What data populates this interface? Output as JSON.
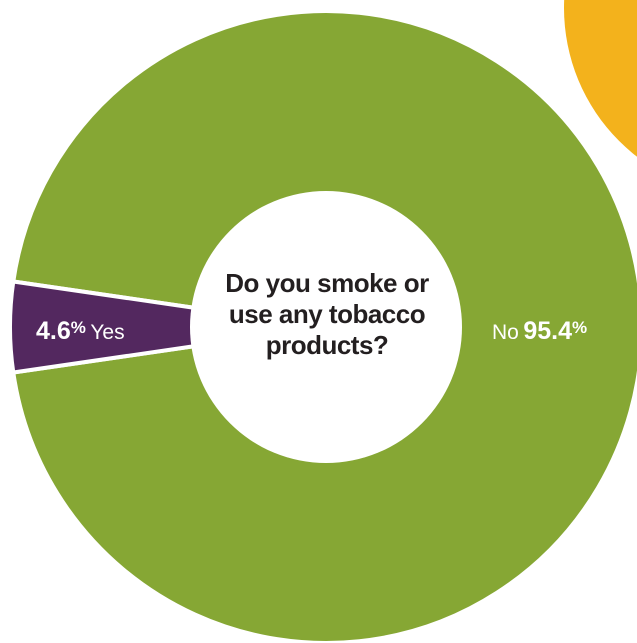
{
  "chart_data": {
    "type": "pie",
    "title": "Do you smoke or use any tobacco products?",
    "title_lines": [
      "Do you smoke or",
      "use any tobacco",
      "products?"
    ],
    "slices": [
      {
        "label": "Yes",
        "value": 4.6,
        "display": "4.6",
        "unit": "%",
        "color": "#53285f"
      },
      {
        "label": "No",
        "value": 95.4,
        "display": "95.4",
        "unit": "%",
        "color": "#86a734"
      }
    ],
    "donut": true,
    "legend": "none"
  },
  "colors": {
    "background": "#ffffff",
    "divider": "#ffffff",
    "accent_circle": "#f3b21c"
  }
}
